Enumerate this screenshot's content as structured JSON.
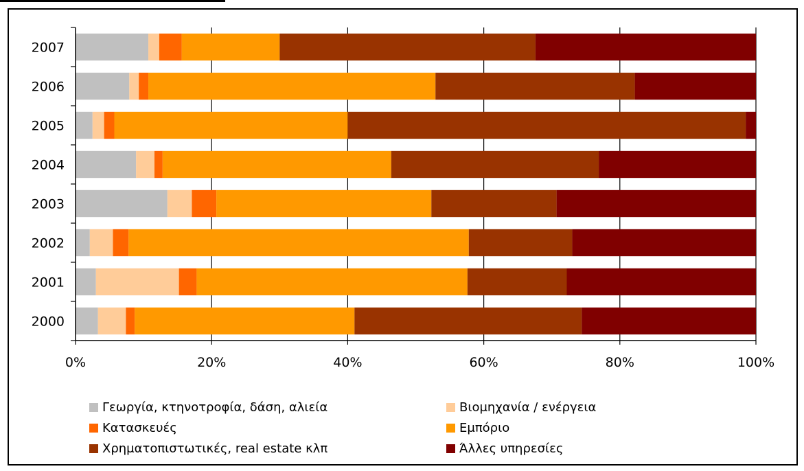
{
  "chart_data": {
    "type": "bar",
    "orientation": "horizontal",
    "stacked": "percent",
    "categories": [
      "2007",
      "2006",
      "2005",
      "2004",
      "2003",
      "2002",
      "2001",
      "2000"
    ],
    "series": [
      {
        "name": "Γεωργία,  κτηνοτροφία,  δάση, αλιεία",
        "color": "#c0c0c0",
        "values": [
          10.7,
          7.9,
          2.5,
          8.9,
          13.5,
          2.1,
          3.0,
          3.3
        ]
      },
      {
        "name": "Βιομηχανία / ενέργεια",
        "color": "#ffcc99",
        "values": [
          1.6,
          1.4,
          1.7,
          2.7,
          3.6,
          3.4,
          12.2,
          4.1
        ]
      },
      {
        "name": "Κατασκευές",
        "color": "#ff6600",
        "values": [
          3.3,
          1.4,
          1.5,
          1.2,
          3.6,
          2.3,
          2.6,
          1.3
        ]
      },
      {
        "name": "Εμπόριο",
        "color": "#ff9900",
        "values": [
          14.4,
          42.2,
          34.3,
          33.6,
          31.6,
          50.0,
          39.8,
          32.3
        ]
      },
      {
        "name": "Χρηματοπιστωτικές, real estate κλπ",
        "color": "#993300",
        "values": [
          37.6,
          29.3,
          58.5,
          30.5,
          18.4,
          15.2,
          14.6,
          33.4
        ]
      },
      {
        "name": "Άλλες υπηρεσίες",
        "color": "#800000",
        "values": [
          32.4,
          17.8,
          1.5,
          23.1,
          29.3,
          27.0,
          27.8,
          25.6
        ]
      }
    ],
    "x_ticks": [
      "0%",
      "20%",
      "40%",
      "60%",
      "80%",
      "100%"
    ],
    "xlim": [
      0,
      100
    ],
    "grid": "vertical",
    "legend": "bottom",
    "title": "",
    "xlabel": "",
    "ylabel": ""
  }
}
